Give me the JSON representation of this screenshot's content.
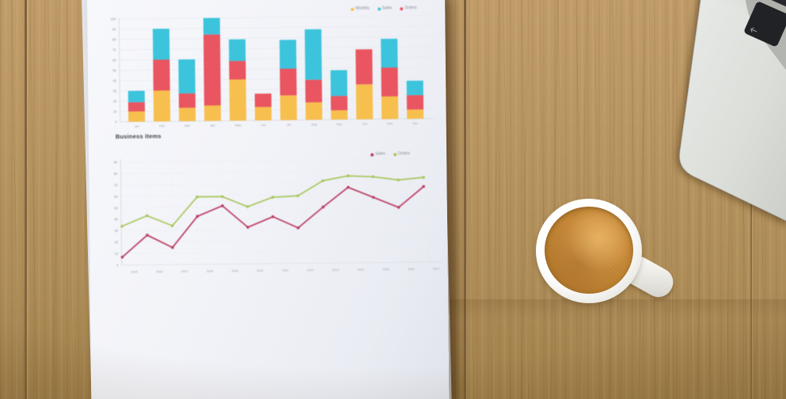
{
  "colors": {
    "bar_yellow": "#F7BF4D",
    "bar_red": "#E95560",
    "bar_teal": "#3BC4DC",
    "line_sales": "#BA3B61",
    "line_orders": "#A7C65B",
    "paper": "#F2F3F8",
    "wood_base": "#B4925E",
    "laptop_silver": "#DCDEDA",
    "laptop_key_black": "#212226",
    "cup_white": "#F6F5F1",
    "coffee_crema": "#C58833"
  },
  "chart_data": [
    {
      "type": "bar",
      "stacked": true,
      "title": "",
      "categories": [
        "Jan",
        "Feb",
        "Mar",
        "Apr",
        "May",
        "Jun",
        "Jul",
        "Aug",
        "Sep",
        "Oct",
        "Nov",
        "Dec"
      ],
      "series": [
        {
          "name": "Monthly",
          "color": "#F7BF4D",
          "values": [
            10,
            30,
            13,
            15,
            40,
            13,
            24,
            17,
            9,
            34,
            22,
            9
          ]
        },
        {
          "name": "Orders",
          "color": "#E95560",
          "values": [
            9,
            30,
            14,
            69,
            18,
            13,
            26,
            22,
            14,
            34,
            28,
            14
          ]
        },
        {
          "name": "Sales",
          "color": "#3BC4DC",
          "values": [
            11,
            30,
            33,
            16,
            21,
            0,
            28,
            49,
            25,
            0,
            28,
            14
          ]
        }
      ],
      "legend": [
        {
          "label": "Monthly",
          "color": "#F7BF4D"
        },
        {
          "label": "Sales",
          "color": "#3BC4DC"
        },
        {
          "label": "Orders",
          "color": "#E95560"
        }
      ],
      "ylim": [
        0,
        100
      ],
      "ytick_step": 10,
      "grid": true,
      "legend_position": "top-right",
      "xlabel": "",
      "ylabel": ""
    },
    {
      "type": "line",
      "title": "Business items",
      "x": [
        "2005",
        "2006",
        "2007",
        "2008",
        "2009",
        "2010",
        "2011",
        "2012",
        "2013",
        "2014",
        "2015",
        "2016",
        "2017"
      ],
      "series": [
        {
          "name": "Sales",
          "color": "#BA3B61",
          "values": [
            7,
            26,
            15,
            42,
            51,
            32,
            41,
            31,
            49,
            66,
            57,
            48,
            66
          ]
        },
        {
          "name": "Orders",
          "color": "#A7C65B",
          "values": [
            34,
            43,
            34,
            59,
            59,
            50,
            58,
            59,
            72,
            76,
            75,
            72,
            74
          ]
        }
      ],
      "legend": [
        {
          "label": "Sales",
          "color": "#BA3B61"
        },
        {
          "label": "Orders",
          "color": "#A7C65B"
        }
      ],
      "ylim": [
        0,
        90
      ],
      "ytick_step": 10,
      "grid": true,
      "legend_position": "top-right",
      "xlabel": "",
      "ylabel": ""
    }
  ]
}
